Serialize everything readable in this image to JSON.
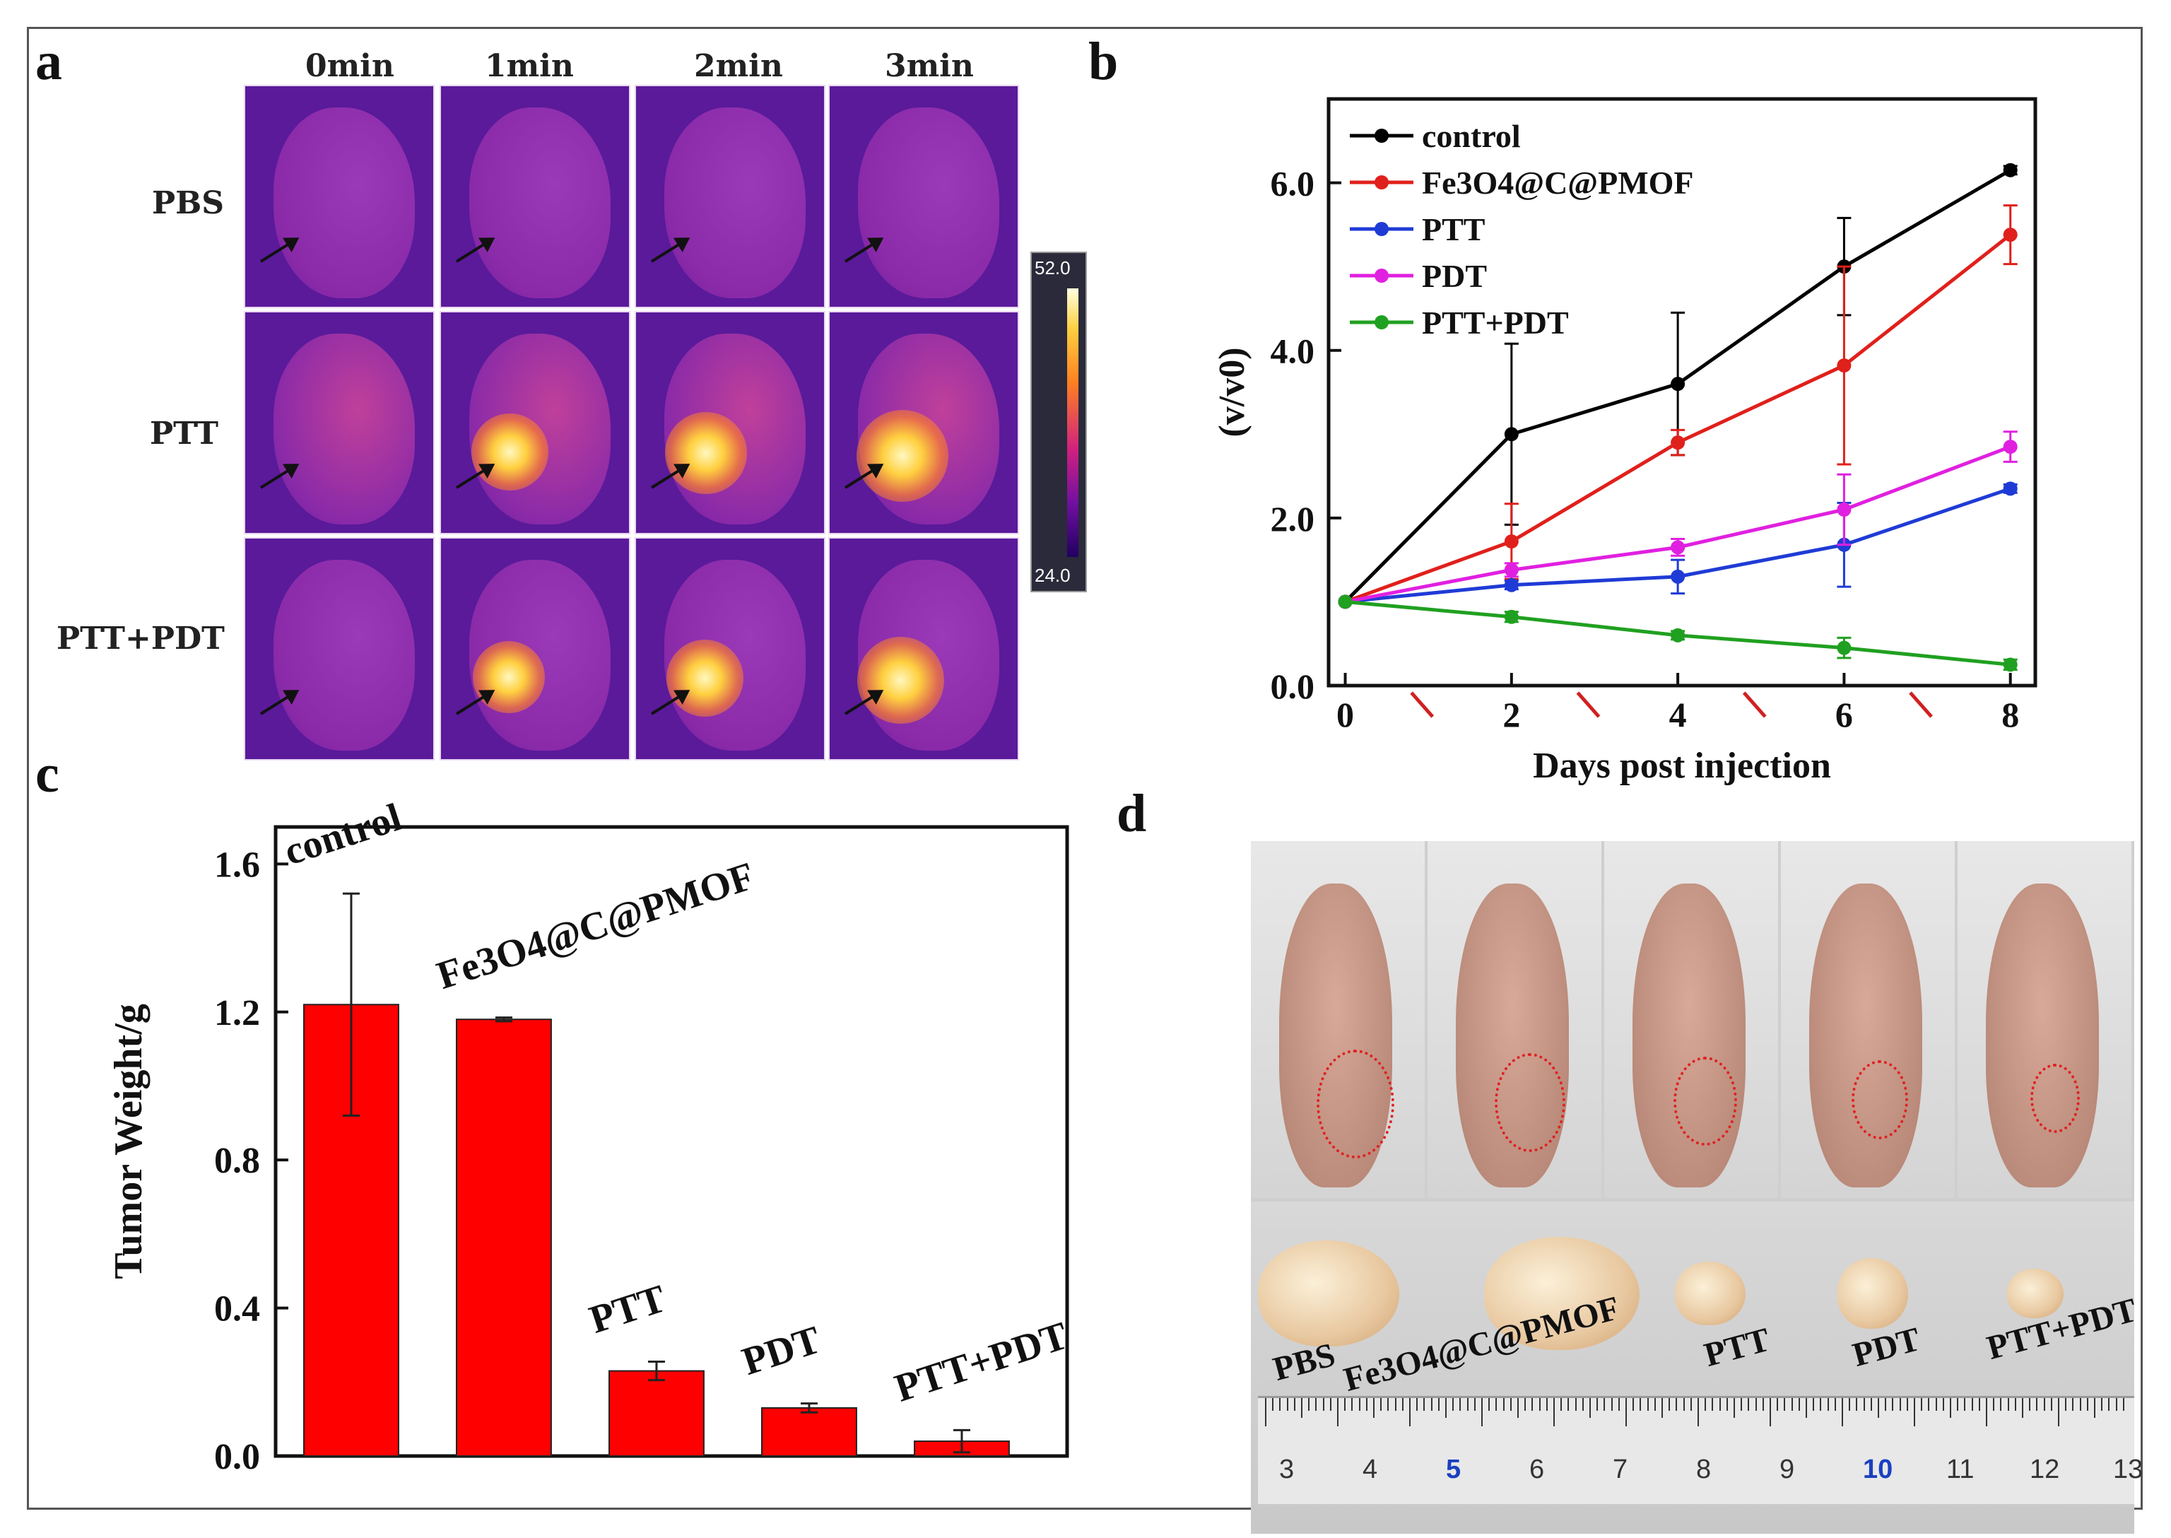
{
  "panels": {
    "a": "a",
    "b": "b",
    "c": "c",
    "d": "d"
  },
  "thermal": {
    "columns": [
      "0min",
      "1min",
      "2min",
      "3min"
    ],
    "rows": [
      "PBS",
      "PTT",
      "PTT+PDT"
    ],
    "colorbar": {
      "max": "52.0",
      "min": "24.0"
    }
  },
  "chart_data": [
    {
      "type": "line",
      "ylabel": "(v/v0)",
      "xlabel": "Days post injection",
      "xlim": [
        -0.2,
        8.3
      ],
      "ylim": [
        0,
        7.0
      ],
      "xticks": [
        "0",
        "2",
        "4",
        "6",
        "8"
      ],
      "yticks": [
        "0.0",
        "2.0",
        "4.0",
        "6.0"
      ],
      "x": [
        0,
        2,
        4,
        6,
        8
      ],
      "legend_position": "top-left",
      "series": [
        {
          "name": "control",
          "color": "#000000",
          "values": [
            1.0,
            3.0,
            3.6,
            5.0,
            6.15
          ],
          "errors": [
            0,
            1.08,
            0.85,
            0.58,
            0.05
          ]
        },
        {
          "name": "Fe3O4@C@PMOF",
          "color": "#e0201b",
          "values": [
            1.0,
            1.72,
            2.9,
            3.82,
            5.38
          ],
          "errors": [
            0,
            0.45,
            0.15,
            1.18,
            0.35
          ]
        },
        {
          "name": "PTT",
          "color": "#1f3bd6",
          "values": [
            1.0,
            1.2,
            1.3,
            1.68,
            2.35
          ],
          "errors": [
            0,
            0.05,
            0.2,
            0.5,
            0.05
          ]
        },
        {
          "name": "PDT",
          "color": "#e020e0",
          "values": [
            1.0,
            1.38,
            1.65,
            2.1,
            2.85
          ],
          "errors": [
            0,
            0.08,
            0.1,
            0.42,
            0.18
          ]
        },
        {
          "name": "PTT+PDT",
          "color": "#20a020",
          "values": [
            1.0,
            0.82,
            0.6,
            0.45,
            0.25
          ],
          "errors": [
            0,
            0.06,
            0.05,
            0.12,
            0.06
          ]
        }
      ]
    },
    {
      "type": "bar",
      "ylabel": "Tumor Weight/g",
      "ylim": [
        0,
        1.7
      ],
      "yticks": [
        "0.0",
        "0.4",
        "0.8",
        "1.2",
        "1.6"
      ],
      "categories": [
        "control",
        "Fe3O4@C@PMOF",
        "PTT",
        "PDT",
        "PTT+PDT"
      ],
      "values": [
        1.22,
        1.18,
        0.23,
        0.13,
        0.04
      ],
      "errors": [
        0.3,
        0.005,
        0.025,
        0.012,
        0.03
      ],
      "color": "#ff0000"
    }
  ],
  "photo_panel": {
    "tumor_labels": [
      "PBS",
      "Fe3O4@C@PMOF",
      "PTT",
      "PDT",
      "PTT+PDT"
    ],
    "ruler_numbers": [
      "3",
      "4",
      "5",
      "6",
      "7",
      "8",
      "9",
      "10",
      "11",
      "12",
      "13"
    ]
  }
}
